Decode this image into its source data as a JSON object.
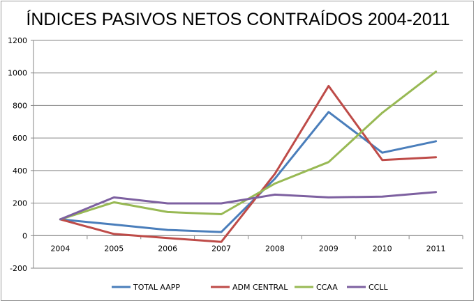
{
  "chart_data": {
    "type": "line",
    "title": "ÍNDICES PASIVOS NETOS CONTRAÍDOS 2004-2011",
    "xlabel": "",
    "ylabel": "",
    "categories": [
      "2004",
      "2005",
      "2006",
      "2007",
      "2008",
      "2009",
      "2010",
      "2011"
    ],
    "ylim": [
      -200,
      1200
    ],
    "yticks": [
      -200,
      0,
      200,
      400,
      600,
      800,
      1000,
      1200
    ],
    "grid": true,
    "legend_position": "bottom",
    "series": [
      {
        "name": "TOTAL AAPP",
        "color": "#4a7ebb",
        "values": [
          100,
          68,
          35,
          22,
          350,
          760,
          510,
          580
        ]
      },
      {
        "name": "ADM CENTRAL",
        "color": "#be4b48",
        "values": [
          100,
          10,
          -15,
          -38,
          380,
          920,
          465,
          482
        ]
      },
      {
        "name": "CCAA",
        "color": "#98b954",
        "values": [
          100,
          205,
          145,
          132,
          320,
          452,
          755,
          1008
        ]
      },
      {
        "name": "CCLL",
        "color": "#7d60a0",
        "values": [
          100,
          235,
          198,
          198,
          252,
          235,
          240,
          268
        ]
      }
    ]
  }
}
